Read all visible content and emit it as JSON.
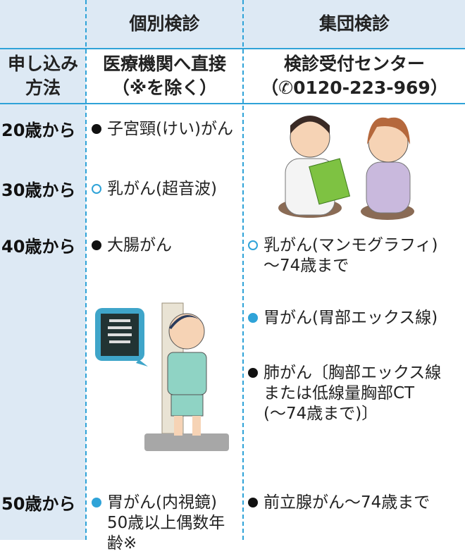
{
  "header": {
    "columns": [
      "個別検診",
      "集団検診"
    ]
  },
  "method": {
    "label": [
      "申し込み",
      "方法"
    ],
    "individual": [
      "医療機関へ直接",
      "（※を除く）"
    ],
    "group": [
      "検診受付センター",
      "（✆0120-223-969）"
    ]
  },
  "ages": [
    "20歳から",
    "30歳から",
    "40歳から",
    "50歳から"
  ],
  "items": [
    {
      "lines": [
        "子宮頸(けい)がん"
      ]
    },
    {
      "lines": [
        "乳がん(超音波)"
      ]
    },
    {
      "lines": [
        "大腸がん"
      ]
    },
    {
      "lines": [
        "乳がん(マンモグラフィ)",
        "〜74歳まで"
      ]
    },
    {
      "lines": [
        "胃がん(胃部エックス線)"
      ]
    },
    {
      "lines": [
        "肺がん〔胸部エックス線",
        "または低線量胸部CT",
        "(〜74歳まで)〕"
      ]
    },
    {
      "lines": [
        "胃がん(内視鏡)",
        "50歳以上偶数年",
        "齢※"
      ]
    },
    {
      "lines": [
        "前立腺がん〜74歳まで"
      ]
    }
  ]
}
